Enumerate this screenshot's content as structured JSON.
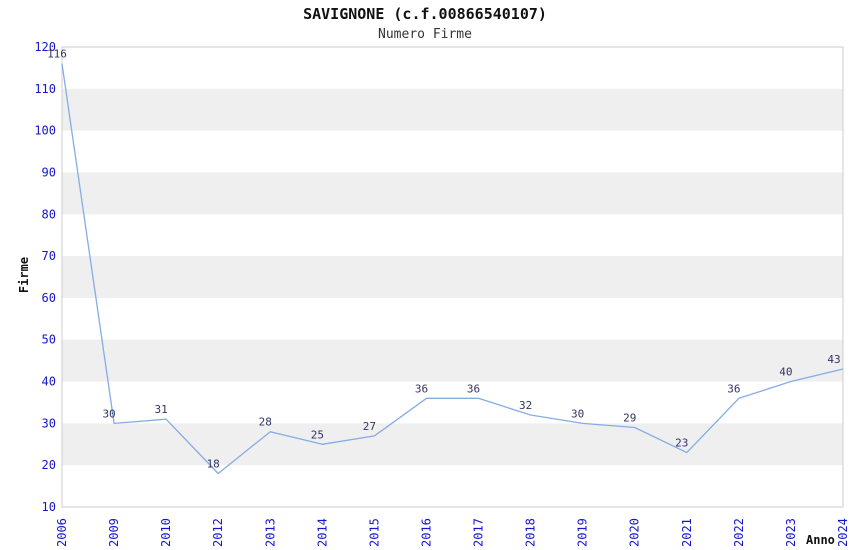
{
  "chart_data": {
    "type": "line",
    "title": "SAVIGNONE (c.f.00866540107)",
    "subtitle": "Numero Firme",
    "xlabel": "Anno",
    "ylabel": "Firme",
    "categories": [
      "2006",
      "2009",
      "2010",
      "2012",
      "2013",
      "2014",
      "2015",
      "2016",
      "2017",
      "2018",
      "2019",
      "2020",
      "2021",
      "2022",
      "2023",
      "2024"
    ],
    "values": [
      116,
      30,
      31,
      18,
      28,
      25,
      27,
      36,
      36,
      32,
      30,
      29,
      23,
      36,
      40,
      43
    ],
    "ylim": [
      10,
      120
    ],
    "ytick_step": 10,
    "yticks": [
      10,
      20,
      30,
      40,
      50,
      60,
      70,
      80,
      90,
      100,
      110,
      120
    ],
    "grid": "alternating-horizontal-bands",
    "legend_position": "none",
    "colors": {
      "line": "#85ace4",
      "tick_label": "#1515cc",
      "data_label": "#333366",
      "band": "#efefef",
      "plot_background": "#ffffff",
      "plot_border": "#cccccc",
      "title": "#111111",
      "subtitle": "#333333",
      "axis_title": "#111111"
    }
  }
}
